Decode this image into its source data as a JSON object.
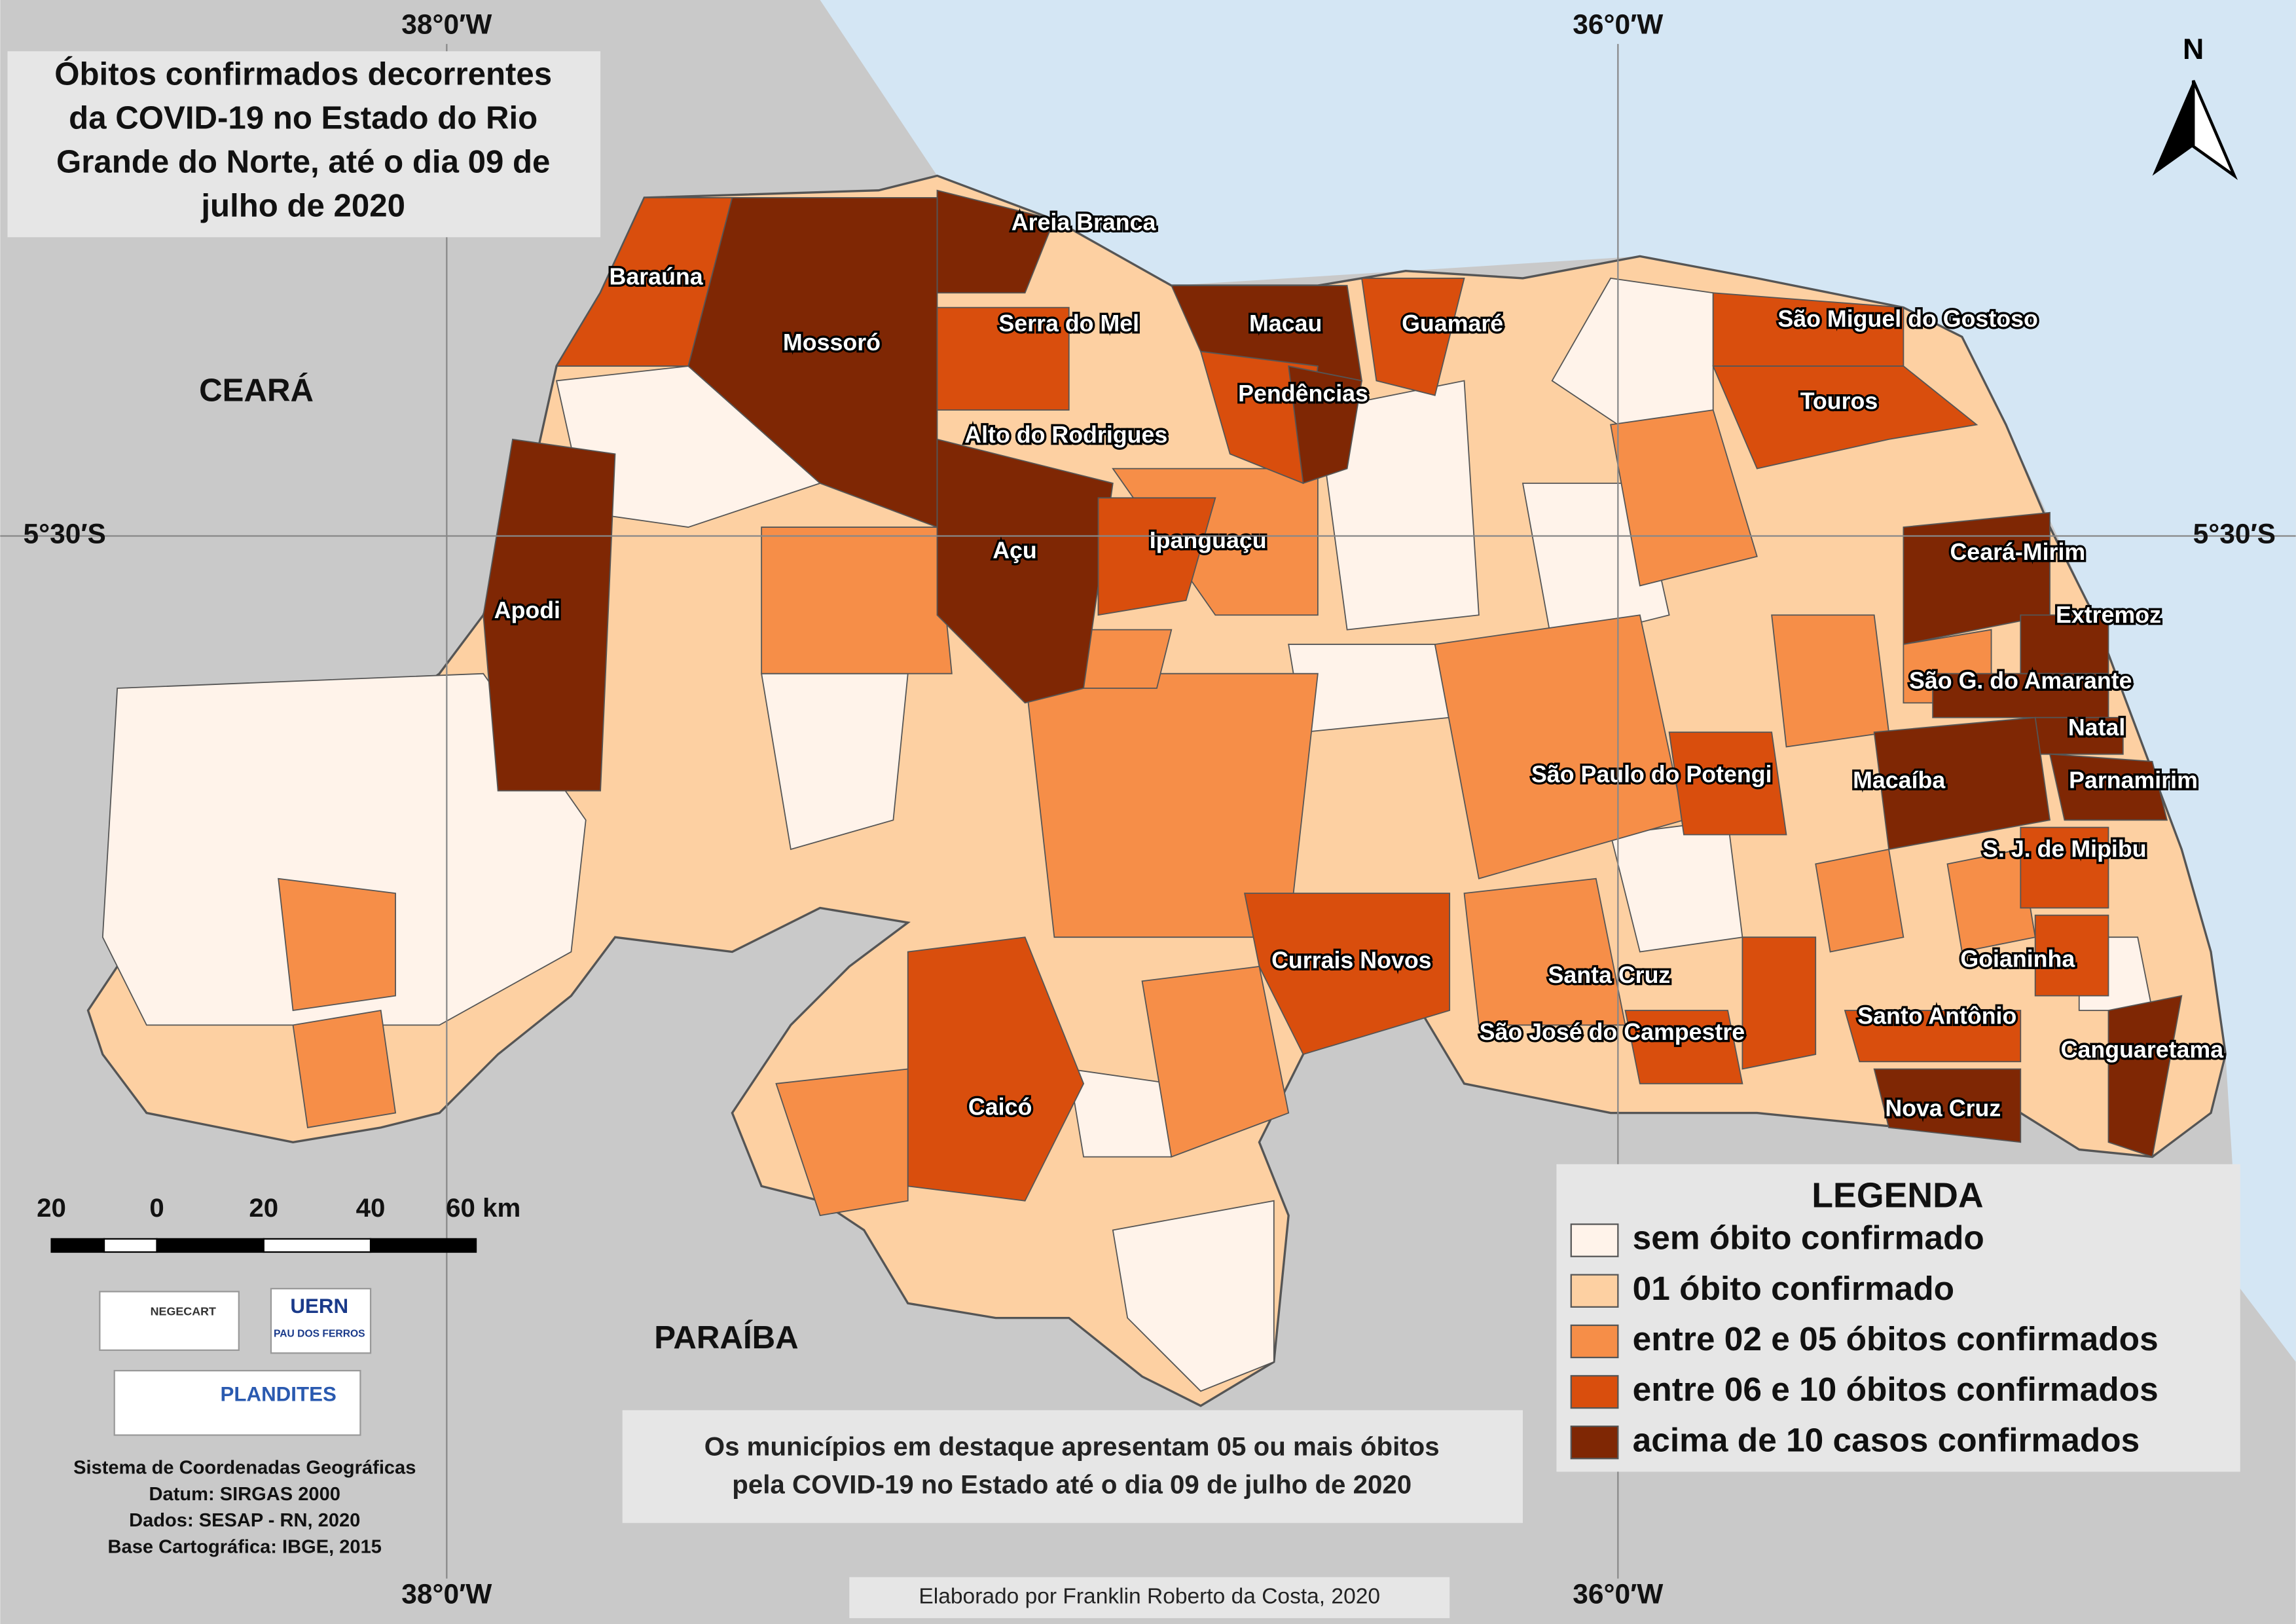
{
  "title_lines": [
    "Óbitos confirmados decorrentes",
    "da COVID-19 no Estado do Rio",
    "Grande do Norte, até o dia 09 de",
    "julho de 2020"
  ],
  "grid_labels": {
    "lon_west": "38°0′W",
    "lon_east": "36°0′W",
    "lat": "5°30′S"
  },
  "neighbors": [
    "CEARÁ",
    "PARAÍBA"
  ],
  "north": "N",
  "legend": {
    "title": "LEGENDA",
    "items": [
      {
        "label": "sem óbito confirmado",
        "color": "#fff3ea"
      },
      {
        "label": "01 óbito confirmado",
        "color": "#fdd0a2"
      },
      {
        "label": "entre 02 e 05 óbitos confirmados",
        "color": "#f68e48"
      },
      {
        "label": "entre 06 e 10 óbitos confirmados",
        "color": "#d94e0d"
      },
      {
        "label": "acima de 10 casos confirmados",
        "color": "#7f2704"
      }
    ]
  },
  "municipalities": [
    {
      "name": "Areia Branca",
      "class": 4
    },
    {
      "name": "Baraúna",
      "class": 3
    },
    {
      "name": "Mossoró",
      "class": 4
    },
    {
      "name": "Serra do Mel",
      "class": 3
    },
    {
      "name": "Macau",
      "class": 4
    },
    {
      "name": "Guamaré",
      "class": 3
    },
    {
      "name": "Pendências",
      "class": 3
    },
    {
      "name": "Alto do Rodrigues",
      "class": 4
    },
    {
      "name": "Açu",
      "class": 4
    },
    {
      "name": "Ipanguaçu",
      "class": 3
    },
    {
      "name": "Apodi",
      "class": 4
    },
    {
      "name": "São Miguel do Gostoso",
      "class": 3
    },
    {
      "name": "Touros",
      "class": 3
    },
    {
      "name": "Ceará-Mirim",
      "class": 4
    },
    {
      "name": "Extremoz",
      "class": 4
    },
    {
      "name": "São G. do Amarante",
      "class": 4
    },
    {
      "name": "Natal",
      "class": 4
    },
    {
      "name": "Parnamirim",
      "class": 4
    },
    {
      "name": "Macaíba",
      "class": 4
    },
    {
      "name": "São Paulo do Potengi",
      "class": 3
    },
    {
      "name": "S. J. de Mipibu",
      "class": 3
    },
    {
      "name": "Goianinha",
      "class": 3
    },
    {
      "name": "Currais Novos",
      "class": 3
    },
    {
      "name": "Santa Cruz",
      "class": 3
    },
    {
      "name": "São José do Campestre",
      "class": 3
    },
    {
      "name": "Santo Antônio",
      "class": 3
    },
    {
      "name": "Canguaretama",
      "class": 4
    },
    {
      "name": "Nova Cruz",
      "class": 4
    },
    {
      "name": "Caicó",
      "class": 3
    }
  ],
  "scale_labels": [
    "20",
    "0",
    "20",
    "40",
    "60 km"
  ],
  "logos": [
    "NEGECART",
    "UERN",
    "PAU DOS FERROS",
    "PLANDITES"
  ],
  "note_lines": [
    "Os municípios em destaque apresentam 05 ou mais óbitos",
    "pela COVID-19 no Estado até o dia 09 de julho de 2020"
  ],
  "crs_lines": [
    "Sistema de Coordenadas Geográficas",
    "Datum: SIRGAS 2000",
    "Dados: SESAP - RN, 2020",
    "Base Cartográfica: IBGE, 2015"
  ],
  "credit": "Elaborado por Franklin Roberto da Costa, 2020"
}
